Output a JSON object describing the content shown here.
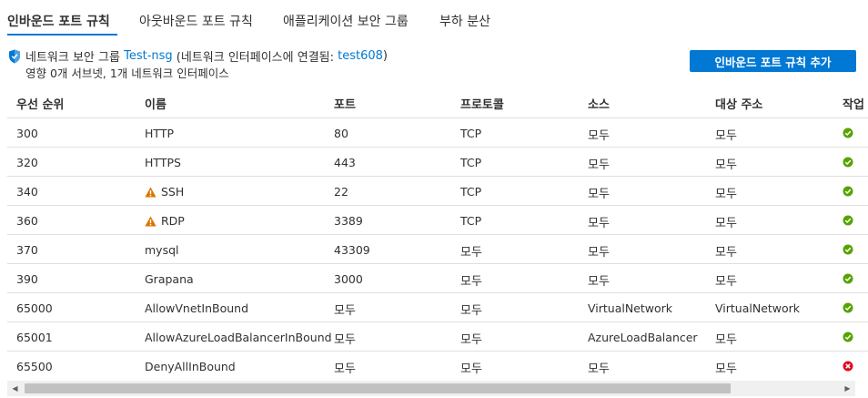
{
  "tabs": [
    {
      "label": "인바운드 포트 규칙",
      "active": true
    },
    {
      "label": "아웃바운드 포트 규칙",
      "active": false
    },
    {
      "label": "애플리케이션 보안 그룹",
      "active": false
    },
    {
      "label": "부하 분산",
      "active": false
    }
  ],
  "nsg": {
    "prefix": "네트워크 보안 그룹",
    "name": "Test-nsg",
    "paren_open": "(네트워크 인터페이스에 연결됨:",
    "interface": "test608",
    "paren_close": ")",
    "impact": "영향 0개 서브넷, 1개 네트워크 인터페이스"
  },
  "add_button_label": "인바운드 포트 규칙 추가",
  "columns": {
    "priority": "우선 순위",
    "name": "이름",
    "port": "포트",
    "protocol": "프로토콜",
    "source": "소스",
    "destination": "대상 주소",
    "action": "작업"
  },
  "rules": [
    {
      "priority": "300",
      "name": "HTTP",
      "warning": false,
      "port": "80",
      "protocol": "TCP",
      "source": "모두",
      "destination": "모두",
      "action": "allow"
    },
    {
      "priority": "320",
      "name": "HTTPS",
      "warning": false,
      "port": "443",
      "protocol": "TCP",
      "source": "모두",
      "destination": "모두",
      "action": "allow"
    },
    {
      "priority": "340",
      "name": "SSH",
      "warning": true,
      "port": "22",
      "protocol": "TCP",
      "source": "모두",
      "destination": "모두",
      "action": "allow"
    },
    {
      "priority": "360",
      "name": "RDP",
      "warning": true,
      "port": "3389",
      "protocol": "TCP",
      "source": "모두",
      "destination": "모두",
      "action": "allow"
    },
    {
      "priority": "370",
      "name": "mysql",
      "warning": false,
      "port": "43309",
      "protocol": "모두",
      "source": "모두",
      "destination": "모두",
      "action": "allow"
    },
    {
      "priority": "390",
      "name": "Grapana",
      "warning": false,
      "port": "3000",
      "protocol": "모두",
      "source": "모두",
      "destination": "모두",
      "action": "allow"
    },
    {
      "priority": "65000",
      "name": "AllowVnetInBound",
      "warning": false,
      "port": "모두",
      "protocol": "모두",
      "source": "VirtualNetwork",
      "destination": "VirtualNetwork",
      "action": "allow"
    },
    {
      "priority": "65001",
      "name": "AllowAzureLoadBalancerInBound",
      "warning": false,
      "port": "모두",
      "protocol": "모두",
      "source": "AzureLoadBalancer",
      "destination": "모두",
      "action": "allow"
    },
    {
      "priority": "65500",
      "name": "DenyAllInBound",
      "warning": false,
      "port": "모두",
      "protocol": "모두",
      "source": "모두",
      "destination": "모두",
      "action": "deny"
    }
  ],
  "colors": {
    "accent": "#0078d4",
    "allow": "#57a300",
    "deny": "#e00b1c",
    "warning": "#db7500"
  },
  "icons": {
    "shield": "shield-icon",
    "warning": "warning-icon",
    "allow": "check-circle-icon",
    "deny": "deny-circle-icon"
  }
}
